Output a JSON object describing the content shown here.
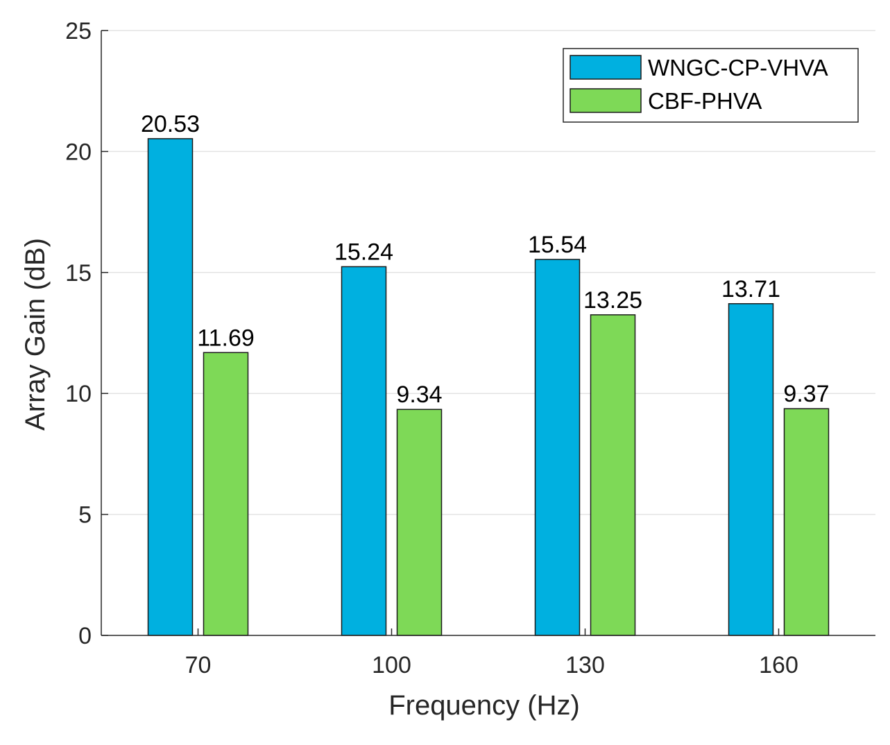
{
  "chart_data": {
    "type": "bar",
    "title": "",
    "xlabel": "Frequency (Hz)",
    "ylabel": "Array Gain (dB)",
    "ylim": [
      0,
      25
    ],
    "yticks": [
      0,
      5,
      10,
      15,
      20,
      25
    ],
    "categories": [
      "70",
      "100",
      "130",
      "160"
    ],
    "grid": true,
    "legend_position": "top-right",
    "series": [
      {
        "name": "WNGC-CP-VHVA",
        "color": "#00B0E0",
        "values": [
          20.53,
          15.24,
          15.54,
          13.71
        ],
        "labels": [
          "20.53",
          "15.24",
          "15.54",
          "13.71"
        ]
      },
      {
        "name": "CBF-PHVA",
        "color": "#7ED957",
        "values": [
          11.69,
          9.34,
          13.25,
          9.37
        ],
        "labels": [
          "11.69",
          "9.34",
          "13.25",
          "9.37"
        ]
      }
    ]
  }
}
